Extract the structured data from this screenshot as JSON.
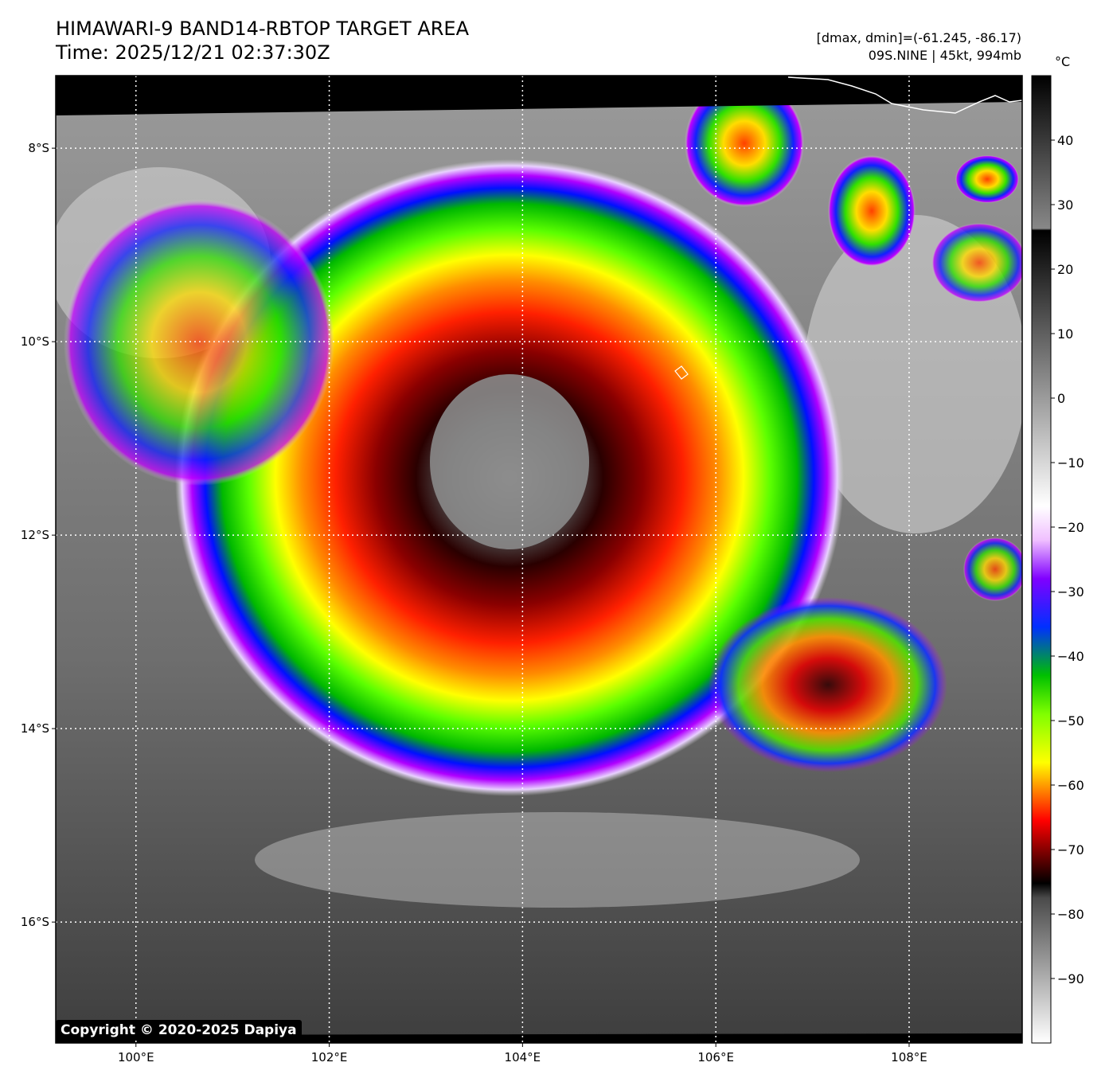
{
  "title_line1": "HIMAWARI-9 BAND14-RBTOP TARGET AREA",
  "title_line2": "Time: 2025/12/21 02:37:30Z",
  "stats_line": "[dmax, dmin]=(-61.245, -86.17)",
  "storm_line": "09S.NINE | 45kt, 994mb",
  "colorbar": {
    "unit": "°C",
    "ticks": [
      40,
      30,
      20,
      10,
      0,
      -10,
      -20,
      -30,
      -40,
      -50,
      -60,
      -70,
      -80,
      -90
    ],
    "range": [
      -100,
      50
    ]
  },
  "map": {
    "lon_range": [
      99.17,
      109.17
    ],
    "lat_range": [
      -17.25,
      -7.25
    ],
    "lon_ticks": [
      {
        "value": 100,
        "label": "100°E"
      },
      {
        "value": 102,
        "label": "102°E"
      },
      {
        "value": 104,
        "label": "104°E"
      },
      {
        "value": 106,
        "label": "106°E"
      },
      {
        "value": 108,
        "label": "108°E"
      }
    ],
    "lat_ticks": [
      {
        "value": -8,
        "label": "8°S"
      },
      {
        "value": -10,
        "label": "10°S"
      },
      {
        "value": -12,
        "label": "12°S"
      },
      {
        "value": -14,
        "label": "14°S"
      },
      {
        "value": -16,
        "label": "16°S"
      }
    ],
    "grid": "dotted white"
  },
  "copyright": "Copyright © 2020-2025 Dapiya"
}
